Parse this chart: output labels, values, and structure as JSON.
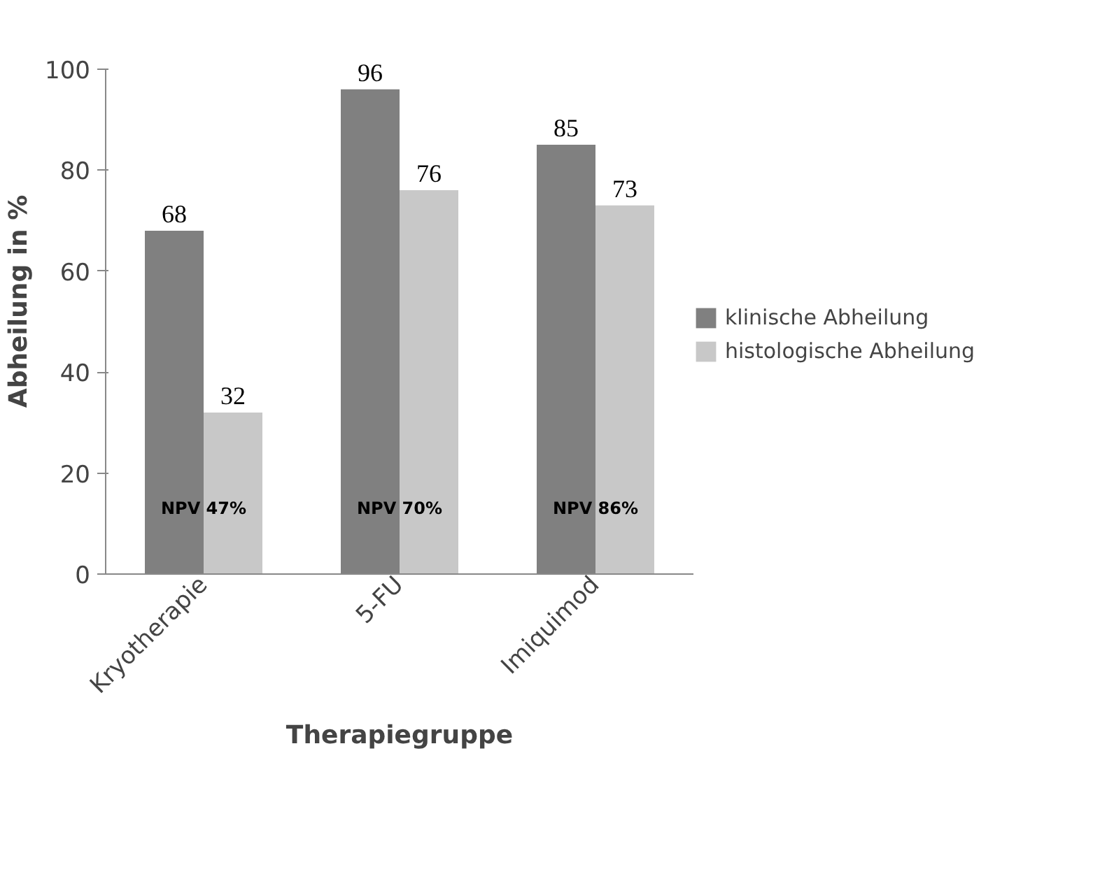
{
  "chart_data": {
    "type": "bar",
    "xlabel": "Therapiegruppe",
    "ylabel": "Abheilung in %",
    "categories": [
      "Kryotherapie",
      "5-FU",
      "Imiquimod"
    ],
    "series": [
      {
        "name": "klinische Abheilung",
        "color": "#808080",
        "values": [
          68,
          96,
          85
        ]
      },
      {
        "name": "histologische Abheilung",
        "color": "#c8c8c8",
        "values": [
          32,
          76,
          73
        ]
      }
    ],
    "ylim": [
      0,
      100
    ],
    "yticks": [
      0,
      20,
      40,
      60,
      80,
      100
    ],
    "grid": false,
    "legend": "right",
    "data_labels": true,
    "annotations": [
      {
        "text": "NPV 47%",
        "x": "Kryotherapie",
        "y": 13
      },
      {
        "text": "NPV 70%",
        "x": "5-FU",
        "y": 13
      },
      {
        "text": "NPV 86%",
        "x": "Imiquimod",
        "y": 13
      }
    ]
  }
}
